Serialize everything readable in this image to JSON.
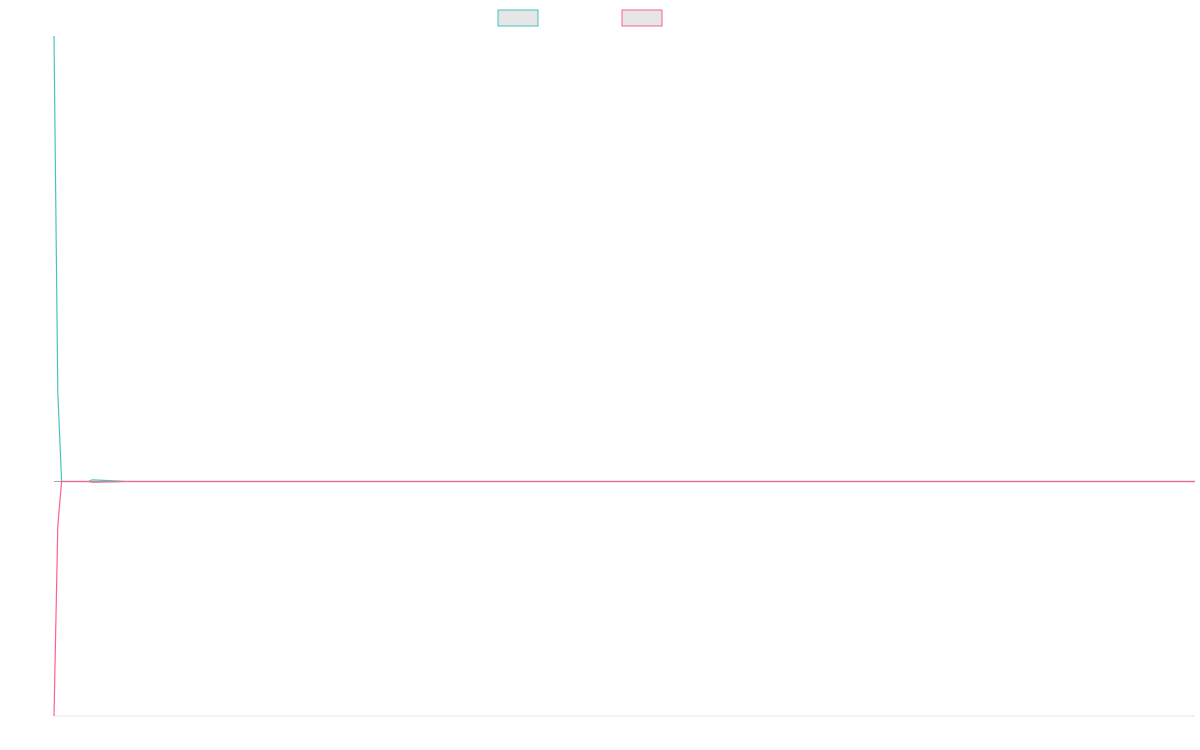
{
  "chart_data": {
    "type": "line",
    "title": "",
    "xlabel": "",
    "ylabel": "",
    "grid": false,
    "legend_position": "top-center",
    "x": [
      0,
      1,
      2,
      3,
      4,
      5,
      6,
      7,
      8,
      9,
      10,
      20,
      50,
      100,
      200,
      300
    ],
    "ylim": [
      -1,
      1.9
    ],
    "series": [
      {
        "color": "#4bc0c0",
        "fill": "#e6e6e6",
        "values": [
          1.9,
          0.38,
          0.0,
          0.0,
          0.0,
          0.0,
          0.0,
          0.0,
          0.0,
          0.0,
          0.007,
          0.0,
          0.0,
          0.0,
          0.0,
          0.0
        ]
      },
      {
        "color": "#ff6384",
        "fill": "#e6e6e6",
        "values": [
          -1.0,
          -0.19,
          0.0,
          0.0,
          0.0,
          0.0,
          0.0,
          0.0,
          0.0,
          0.0,
          -0.003,
          0.0,
          0.0,
          0.0,
          0.0,
          0.0
        ]
      }
    ]
  }
}
